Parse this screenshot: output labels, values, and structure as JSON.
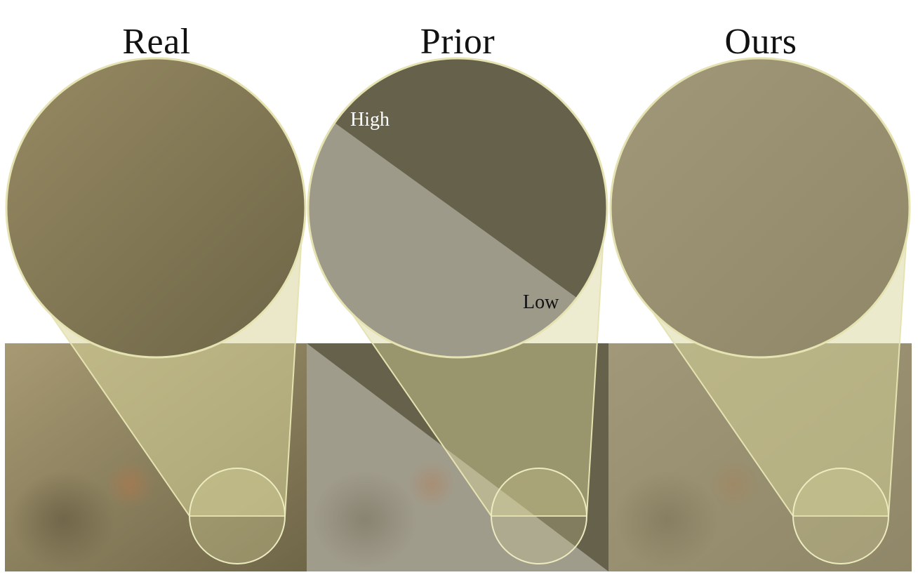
{
  "titles": {
    "real": "Real",
    "prior": "Prior",
    "ours": "Ours"
  },
  "prior_labels": {
    "high": "High",
    "low": "Low"
  },
  "colors": {
    "background": "#ffffff",
    "panel_real": "#8a7f5c",
    "panel_prior_dark": "#66614a",
    "panel_prior_light": "#9e9a8b",
    "panel_ours": "#938b6e",
    "magnifier_fill": "#d8d59a",
    "magnifier_stroke": "#e6e3b2"
  }
}
